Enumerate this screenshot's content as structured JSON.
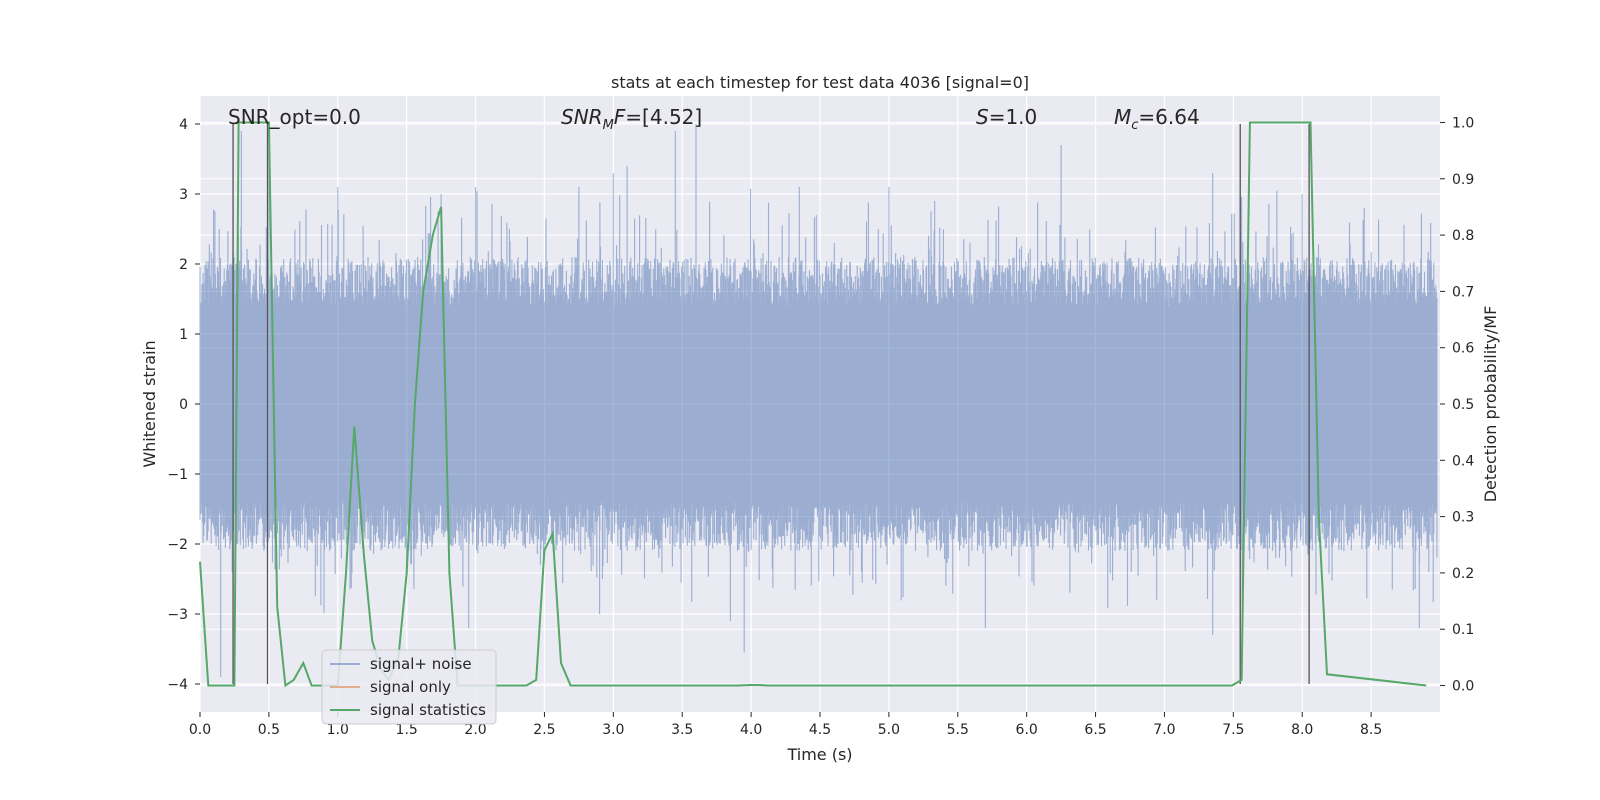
{
  "chart_data": {
    "type": "line",
    "title": "stats at each timestep for test data 4036 [signal=0]",
    "xlabel": "Time (s)",
    "ylabel": "Whitened strain",
    "y2label": "Detection probability/MF",
    "xlim": [
      0.0,
      9.0
    ],
    "ylim": [
      -4.4,
      4.4
    ],
    "y2lim": [
      -0.047,
      1.047
    ],
    "xticks": [
      0.0,
      0.5,
      1.0,
      1.5,
      2.0,
      2.5,
      3.0,
      3.5,
      4.0,
      4.5,
      5.0,
      5.5,
      6.0,
      6.5,
      7.0,
      7.5,
      8.0,
      8.5
    ],
    "xtick_labels": [
      "0.0",
      "0.5",
      "1.0",
      "1.5",
      "2.0",
      "2.5",
      "3.0",
      "3.5",
      "4.0",
      "4.5",
      "5.0",
      "5.5",
      "6.0",
      "6.5",
      "7.0",
      "7.5",
      "8.0",
      "8.5"
    ],
    "yticks": [
      -4,
      -3,
      -2,
      -1,
      0,
      1,
      2,
      3,
      4
    ],
    "ytick_labels": [
      "−4",
      "−3",
      "−2",
      "−1",
      "0",
      "1",
      "2",
      "3",
      "4"
    ],
    "y2ticks": [
      0.0,
      0.1,
      0.2,
      0.3,
      0.4,
      0.5,
      0.6,
      0.7,
      0.8,
      0.9,
      1.0
    ],
    "y2tick_labels": [
      "0.0",
      "0.1",
      "0.2",
      "0.3",
      "0.4",
      "0.5",
      "0.6",
      "0.7",
      "0.8",
      "0.9",
      "1.0"
    ],
    "grid": true,
    "legend_position": "lower-left",
    "annotations": [
      {
        "id": "snr-opt",
        "text": "SNR_opt=0.0",
        "x": 0.2
      },
      {
        "id": "snr-mf",
        "text": "SNR_MF=[4.52]",
        "x": 2.6
      },
      {
        "id": "s-value",
        "text": "S=1.0",
        "x": 5.6
      },
      {
        "id": "mc-value",
        "text": "M_c=6.64",
        "x": 6.6
      }
    ],
    "marker_lines_x": [
      0.24,
      0.49,
      7.55,
      8.05
    ],
    "series": [
      {
        "name": "signal+ noise",
        "color": "#4c72b0",
        "axis": "left",
        "style": "noise-band",
        "band_envelope": 2.0,
        "peak_envelope": 4.0,
        "peaks": [
          [
            0.3,
            3.9
          ],
          [
            0.5,
            3.6
          ],
          [
            1.0,
            3.1
          ],
          [
            1.75,
            3.0
          ],
          [
            2.0,
            3.1
          ],
          [
            2.75,
            3.1
          ],
          [
            3.0,
            3.3
          ],
          [
            3.1,
            3.4
          ],
          [
            3.45,
            3.9
          ],
          [
            3.6,
            4.0
          ],
          [
            4.35,
            3.1
          ],
          [
            5.0,
            3.1
          ],
          [
            6.25,
            3.7
          ],
          [
            7.35,
            3.3
          ],
          [
            7.55,
            3.0
          ],
          [
            8.0,
            3.0
          ],
          [
            8.45,
            2.8
          ]
        ],
        "troughs": [
          [
            0.15,
            -3.9
          ],
          [
            1.95,
            -3.2
          ],
          [
            2.9,
            -3.0
          ],
          [
            3.85,
            -3.1
          ],
          [
            3.95,
            -3.55
          ],
          [
            5.7,
            -3.2
          ],
          [
            7.35,
            -3.3
          ],
          [
            8.85,
            -3.2
          ]
        ]
      },
      {
        "name": "signal only",
        "color": "#dd8452",
        "axis": "left",
        "x": [],
        "y": []
      },
      {
        "name": "signal statistics",
        "color": "#55a868",
        "axis": "right",
        "x": [
          0.0,
          0.06,
          0.12,
          0.25,
          0.28,
          0.3,
          0.5,
          0.56,
          0.62,
          0.68,
          0.75,
          0.81,
          0.87,
          0.93,
          1.0,
          1.06,
          1.12,
          1.19,
          1.25,
          1.31,
          1.37,
          1.44,
          1.5,
          1.56,
          1.62,
          1.69,
          1.75,
          1.81,
          1.87,
          1.94,
          2.0,
          2.37,
          2.44,
          2.5,
          2.56,
          2.62,
          2.69,
          2.75,
          3.9,
          4.0,
          4.06,
          4.12,
          7.49,
          7.56,
          7.62,
          7.93,
          8.0,
          8.06,
          8.12,
          8.18,
          8.9
        ],
        "y": [
          0.22,
          0.0,
          0.0,
          0.0,
          1.0,
          1.0,
          1.0,
          0.14,
          0.0,
          0.01,
          0.04,
          0.0,
          0.0,
          0.0,
          0.0,
          0.2,
          0.46,
          0.23,
          0.08,
          0.03,
          0.01,
          0.05,
          0.2,
          0.5,
          0.7,
          0.8,
          0.85,
          0.2,
          0.0,
          0.0,
          0.0,
          0.0,
          0.01,
          0.24,
          0.27,
          0.04,
          0.0,
          0.0,
          0.0,
          0.001,
          0.001,
          0.0,
          0.0,
          0.01,
          1.0,
          1.0,
          1.0,
          1.0,
          0.3,
          0.02,
          0.0
        ]
      }
    ]
  }
}
